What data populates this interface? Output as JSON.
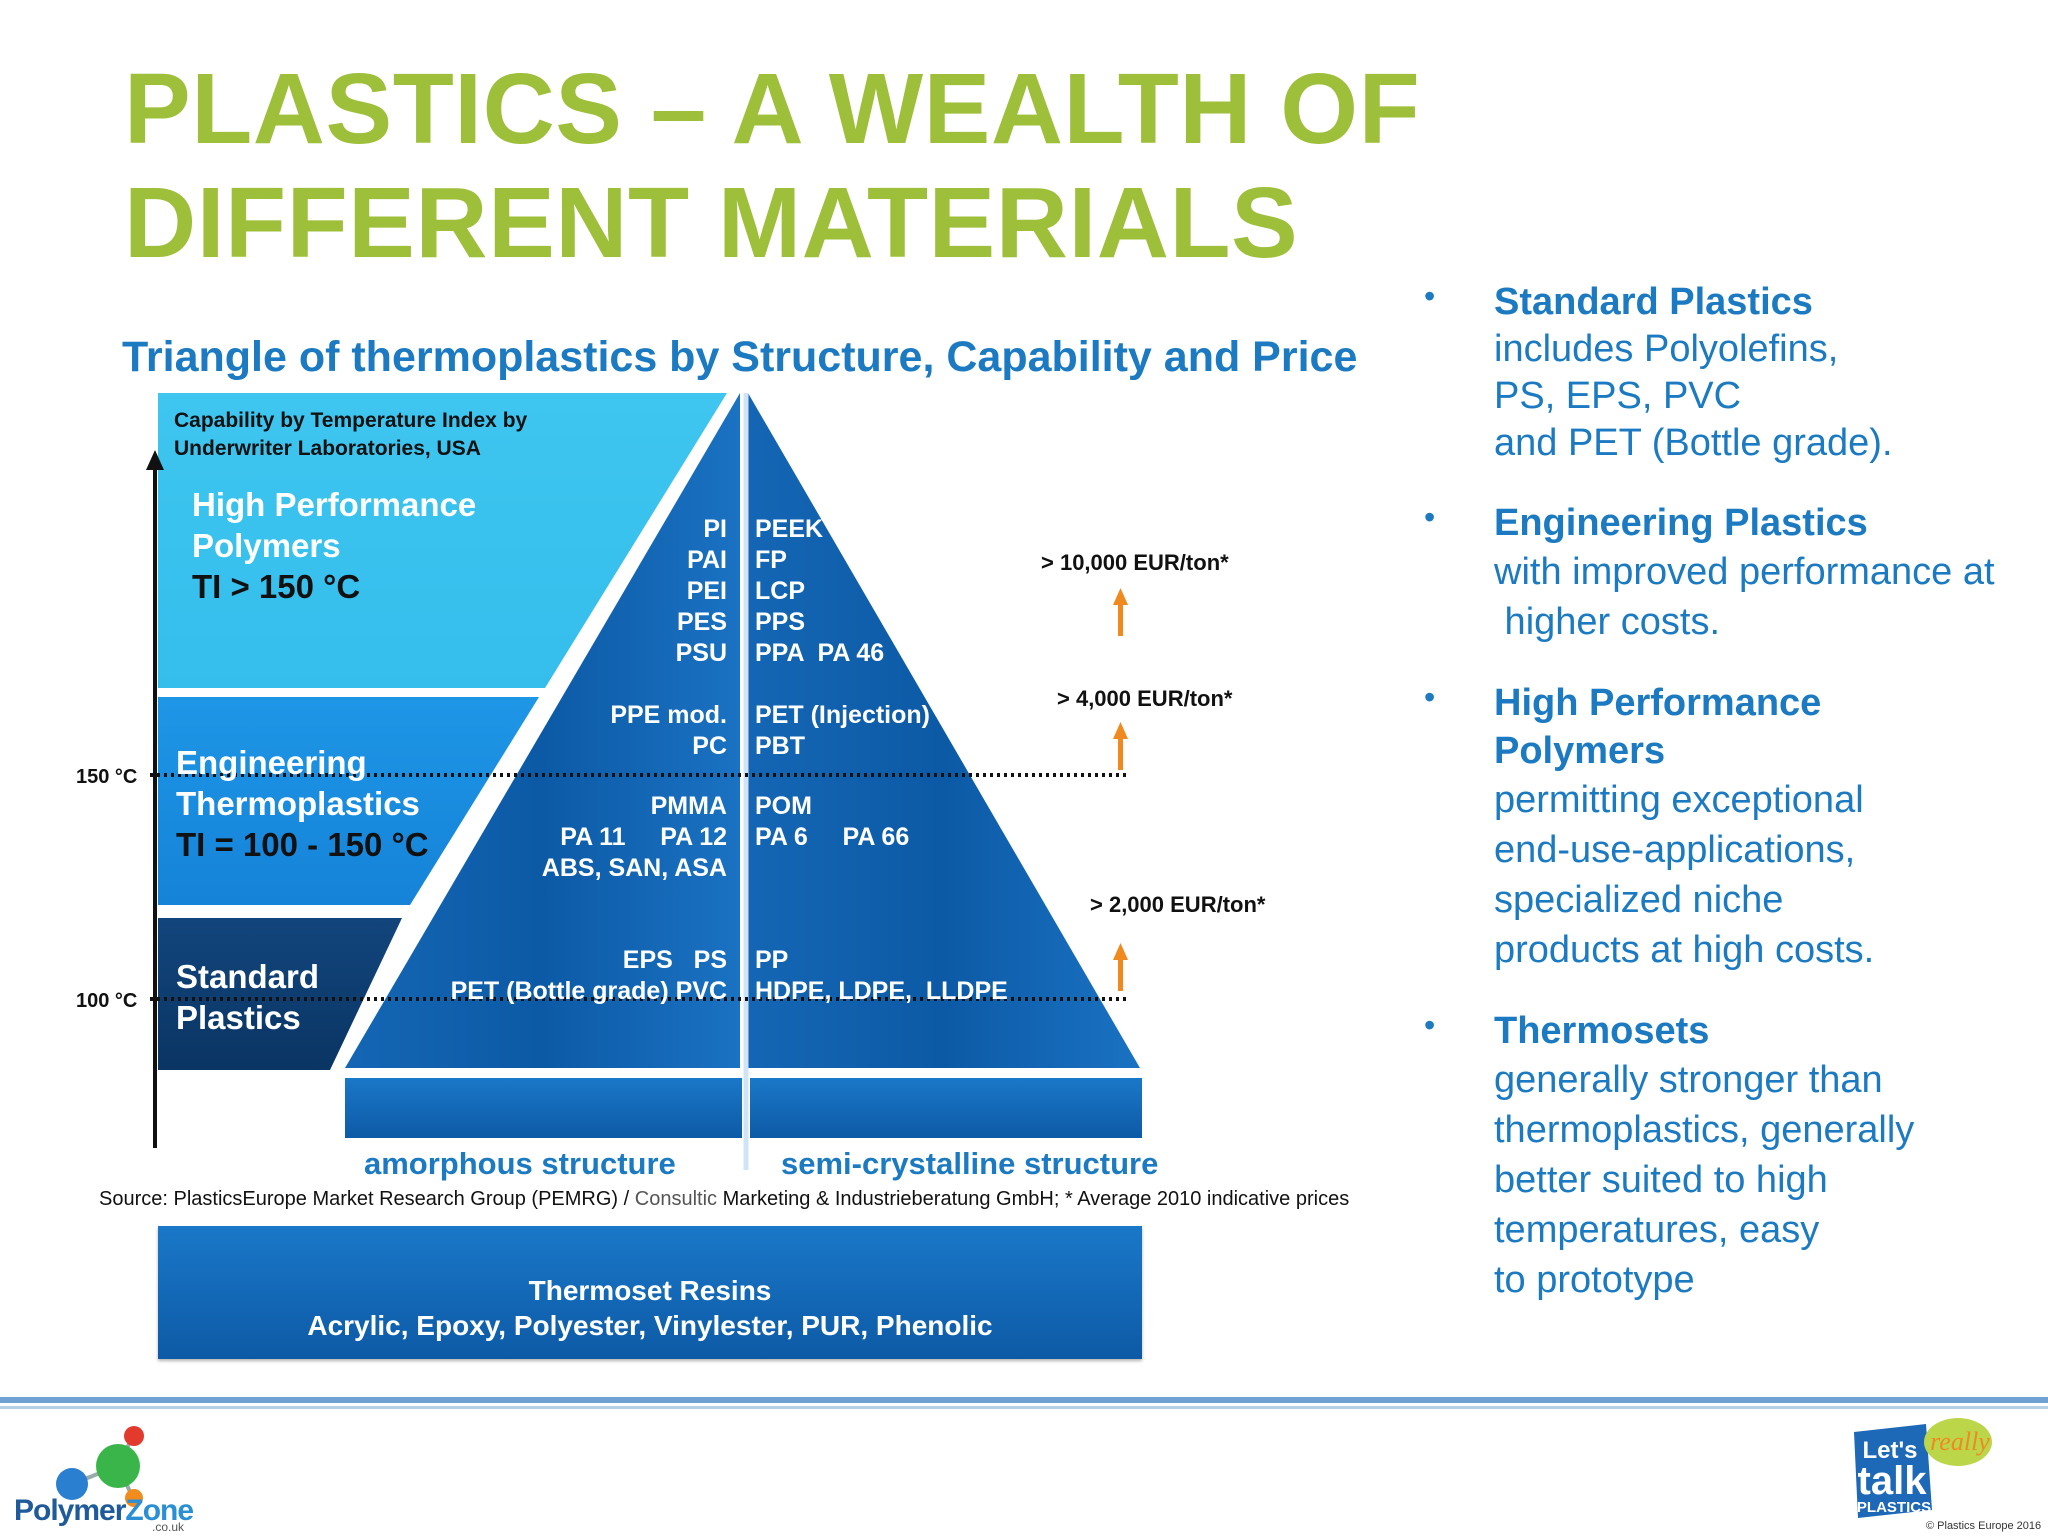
{
  "title": [
    "PLASTICS – A WEALTH OF",
    "DIFFERENT MATERIALS"
  ],
  "subtitle": "Triangle of thermoplastics by Structure, Capability and Price",
  "axis_label": [
    "Capability by Temperature Index by",
    "Underwriter Laboratories, USA"
  ],
  "temps": {
    "t150": "150 °C",
    "t100": "100 °C"
  },
  "bands": {
    "high": {
      "name": [
        "High Performance",
        "Polymers"
      ],
      "ti": "TI > 150 °C"
    },
    "eng": {
      "name": [
        "Engineering",
        "Thermoplastics"
      ],
      "ti": "TI = 100 - 150 °C"
    },
    "std": {
      "name": [
        "Standard",
        "Plastics"
      ]
    }
  },
  "materials": {
    "amorphous_high": [
      "PI",
      "PAI",
      "PEI",
      "PES",
      "PSU"
    ],
    "semi_high": [
      "PEEK",
      "FP",
      "LCP",
      "PPS",
      "PPA  PA 46"
    ],
    "amorphous_eng": [
      "PPE mod.",
      "PC"
    ],
    "semi_eng": [
      "PET (Injection)",
      "PBT"
    ],
    "amorphous_mid": [
      "PMMA",
      "PA 11     PA 12",
      "ABS, SAN, ASA"
    ],
    "semi_mid": [
      "POM",
      "PA 6     PA 66"
    ],
    "amorphous_std": [
      "EPS   PS",
      "PET (Bottle grade) PVC"
    ],
    "semi_std": [
      "PP",
      "HDPE, LDPE,  LLDPE"
    ]
  },
  "prices": {
    "p1": "> 10,000 EUR/ton*",
    "p2": "> 4,000 EUR/ton*",
    "p3": "> 2,000 EUR/ton*"
  },
  "structures": {
    "amorphous": "amorphous structure",
    "semi": "semi-crystalline structure"
  },
  "source": {
    "pre": "Source: PlasticsEurope Market Research Group (PEMRG) / ",
    "gray": "Consultic",
    "post": " Marketing & Industrieberatung GmbH; * Average 2010 indicative prices"
  },
  "thermoset": {
    "title": "Thermoset Resins",
    "items": "Acrylic, Epoxy, Polyester, Vinylester, PUR, Phenolic"
  },
  "bullets": [
    {
      "head": "Standard Plastics",
      "body": [
        "includes Polyolefins,",
        "PS, EPS, PVC",
        "and PET (Bottle grade)."
      ]
    },
    {
      "head": "Engineering Plastics",
      "body": [
        "with improved performance at",
        " higher costs."
      ]
    },
    {
      "head": "High Performance",
      "head2": "Polymers",
      "body": [
        "permitting exceptional",
        "end-use-applications,",
        "specialized niche",
        "products at high costs."
      ]
    },
    {
      "head": "Thermosets",
      "body": [
        "generally stronger than",
        "thermoplastics, generally",
        "better suited to high",
        "temperatures, easy",
        "to prototype"
      ]
    }
  ],
  "bullet_glyph": "•",
  "logos": {
    "pz1": "Polymer",
    "pz2": "Zone",
    "pz_sub": ".co.uk",
    "ltp1": "Let's",
    "ltp2": "talk",
    "ltp3": "PLASTICS",
    "ltp_really": "really",
    "copyright": "© Plastics Europe 2016"
  },
  "colors": {
    "title_green": "#9dbf3a",
    "blue_text": "#1b7ac1",
    "high_band": "#40c8f0",
    "eng_band": "#1a8fe0",
    "std_band": "#0d3f73",
    "triangle": "#0f5fab",
    "arrow_orange": "#f08a1e"
  }
}
